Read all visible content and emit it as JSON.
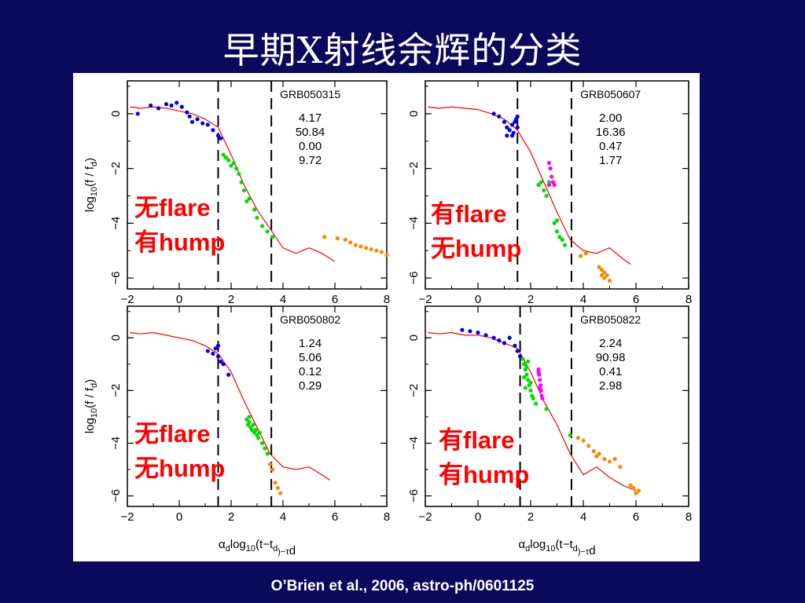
{
  "slide": {
    "title": "早期X射线余辉的分类",
    "citation": "O’Brien et al., 2006, astro-ph/0601125"
  },
  "axes": {
    "ylabel_parts": [
      "log",
      "10",
      "(f / f",
      "d",
      ")"
    ],
    "xlabel_parts": [
      "α",
      "d",
      "log",
      "10",
      "(t−t",
      "d",
      ")−τ",
      "d"
    ]
  },
  "colors": {
    "model": "#ff0000",
    "early": "#0000ee",
    "steep": "#00dd00",
    "flare": "#ff00ff",
    "late": "#ff8800",
    "annotation": "#ff0000"
  },
  "chart_data": [
    {
      "type": "scatter",
      "panel": "top-left",
      "grb": "GRB050315",
      "params": [
        "4.17",
        "50.84",
        "0.00",
        "9.72"
      ],
      "annotation": [
        "无flare",
        "有hump"
      ],
      "xlim": [
        -2,
        8
      ],
      "ylim": [
        -6.4,
        1.2
      ],
      "xticks": [
        -2,
        0,
        2,
        4,
        6,
        8
      ],
      "yticks": [
        0,
        -2,
        -4,
        -6
      ],
      "vlines": [
        1.5,
        3.55
      ],
      "model_line": [
        [
          -1.9,
          0.25
        ],
        [
          -1.5,
          0.2
        ],
        [
          -1.0,
          0.25
        ],
        [
          -0.5,
          0.2
        ],
        [
          0.0,
          0.1
        ],
        [
          0.5,
          0.0
        ],
        [
          1.0,
          -0.2
        ],
        [
          1.5,
          -0.5
        ],
        [
          2.0,
          -1.5
        ],
        [
          2.5,
          -2.6
        ],
        [
          3.0,
          -3.5
        ],
        [
          3.5,
          -4.2
        ],
        [
          4.0,
          -4.9
        ],
        [
          4.5,
          -5.1
        ],
        [
          5.0,
          -4.9
        ],
        [
          5.5,
          -5.1
        ],
        [
          6.0,
          -5.4
        ]
      ],
      "series": [
        {
          "name": "early",
          "points": [
            [
              -1.6,
              0.0
            ],
            [
              -1.1,
              0.3
            ],
            [
              -0.8,
              0.2
            ],
            [
              -0.5,
              0.35
            ],
            [
              -0.3,
              0.3
            ],
            [
              -0.1,
              0.4
            ],
            [
              0.1,
              0.25
            ],
            [
              0.3,
              0.05
            ],
            [
              0.4,
              -0.1
            ],
            [
              0.5,
              -0.3
            ],
            [
              0.7,
              -0.2
            ],
            [
              0.9,
              -0.35
            ],
            [
              1.1,
              -0.4
            ],
            [
              1.3,
              -0.6
            ],
            [
              1.5,
              -0.8
            ],
            [
              1.6,
              -0.9
            ]
          ]
        },
        {
          "name": "steep",
          "points": [
            [
              1.7,
              -1.5
            ],
            [
              1.8,
              -1.6
            ],
            [
              1.9,
              -1.7
            ],
            [
              2.0,
              -1.9
            ],
            [
              2.1,
              -1.8
            ],
            [
              2.2,
              -2.0
            ],
            [
              2.3,
              -2.2
            ],
            [
              2.4,
              -2.5
            ],
            [
              2.5,
              -2.8
            ],
            [
              2.6,
              -3.2
            ],
            [
              2.7,
              -3.1
            ],
            [
              2.9,
              -3.5
            ],
            [
              3.0,
              -3.8
            ],
            [
              3.2,
              -4.1
            ],
            [
              3.4,
              -4.3
            ],
            [
              3.6,
              -4.5
            ]
          ]
        },
        {
          "name": "late",
          "points": [
            [
              5.6,
              -4.5
            ],
            [
              6.1,
              -4.55
            ],
            [
              6.4,
              -4.6
            ],
            [
              6.6,
              -4.7
            ],
            [
              6.8,
              -4.8
            ],
            [
              7.0,
              -4.85
            ],
            [
              7.2,
              -4.9
            ],
            [
              7.4,
              -4.95
            ],
            [
              7.6,
              -5.0
            ],
            [
              7.8,
              -5.05
            ],
            [
              8.0,
              -5.15
            ]
          ]
        }
      ]
    },
    {
      "type": "scatter",
      "panel": "top-right",
      "grb": "GRB050607",
      "params": [
        "2.00",
        "16.36",
        "0.47",
        "1.77"
      ],
      "annotation": [
        "有flare",
        "无hump"
      ],
      "xlim": [
        -2,
        8
      ],
      "ylim": [
        -6.4,
        1.2
      ],
      "xticks": [
        -2,
        0,
        2,
        4,
        6,
        8
      ],
      "yticks": [
        0,
        -2,
        -4,
        -6
      ],
      "vlines": [
        1.5,
        3.55
      ],
      "model_line": [
        [
          -1.9,
          0.25
        ],
        [
          -1.5,
          0.2
        ],
        [
          -1.0,
          0.25
        ],
        [
          -0.5,
          0.2
        ],
        [
          0.0,
          0.15
        ],
        [
          0.5,
          0.0
        ],
        [
          1.0,
          -0.2
        ],
        [
          1.5,
          -0.6
        ],
        [
          2.0,
          -1.4
        ],
        [
          2.5,
          -2.5
        ],
        [
          3.0,
          -3.6
        ],
        [
          3.5,
          -4.6
        ],
        [
          4.0,
          -5.0
        ],
        [
          4.5,
          -5.1
        ],
        [
          5.0,
          -4.9
        ],
        [
          5.5,
          -5.3
        ],
        [
          5.8,
          -5.5
        ]
      ],
      "series": [
        {
          "name": "early",
          "points": [
            [
              0.6,
              0.0
            ],
            [
              0.8,
              -0.1
            ],
            [
              1.0,
              -0.3
            ],
            [
              1.1,
              -0.5
            ],
            [
              1.2,
              -0.6
            ],
            [
              1.3,
              -0.4
            ],
            [
              1.35,
              -0.7
            ],
            [
              1.4,
              -0.3
            ],
            [
              1.5,
              -0.5
            ],
            [
              1.45,
              -0.2
            ],
            [
              1.3,
              -0.8
            ],
            [
              1.1,
              -0.8
            ],
            [
              1.5,
              -0.1
            ]
          ]
        },
        {
          "name": "steep",
          "points": [
            [
              2.3,
              -2.6
            ],
            [
              2.4,
              -2.5
            ],
            [
              2.5,
              -2.8
            ],
            [
              2.6,
              -3.0
            ],
            [
              2.9,
              -4.0
            ],
            [
              3.0,
              -4.3
            ],
            [
              3.1,
              -4.5
            ],
            [
              3.2,
              -4.6
            ],
            [
              3.3,
              -4.8
            ],
            [
              2.7,
              -2.5
            ],
            [
              3.0,
              -3.9
            ]
          ]
        },
        {
          "name": "flare",
          "points": [
            [
              2.7,
              -1.8
            ],
            [
              2.75,
              -2.0
            ],
            [
              2.8,
              -2.3
            ],
            [
              2.85,
              -2.5
            ],
            [
              2.7,
              -2.6
            ],
            [
              2.9,
              -2.6
            ]
          ]
        },
        {
          "name": "late",
          "points": [
            [
              3.9,
              -5.2
            ],
            [
              4.1,
              -5.1
            ],
            [
              4.6,
              -5.6
            ],
            [
              4.7,
              -5.7
            ],
            [
              4.8,
              -5.8
            ],
            [
              4.9,
              -5.9
            ],
            [
              5.0,
              -6.1
            ],
            [
              4.8,
              -6.0
            ],
            [
              4.7,
              -5.9
            ]
          ]
        }
      ]
    },
    {
      "type": "scatter",
      "panel": "bottom-left",
      "grb": "GRB050802",
      "params": [
        "1.24",
        "5.06",
        "0.12",
        "0.29"
      ],
      "annotation": [
        "无flare",
        "无hump"
      ],
      "xlim": [
        -2,
        8
      ],
      "ylim": [
        -6.4,
        1.2
      ],
      "xticks": [
        -2,
        0,
        2,
        4,
        6,
        8
      ],
      "yticks": [
        0,
        -2,
        -4,
        -6
      ],
      "vlines": [
        1.5,
        3.55
      ],
      "model_line": [
        [
          -1.9,
          0.2
        ],
        [
          -1.5,
          0.15
        ],
        [
          -1.0,
          0.2
        ],
        [
          -0.5,
          0.1
        ],
        [
          0.0,
          0.0
        ],
        [
          0.5,
          -0.1
        ],
        [
          1.0,
          -0.3
        ],
        [
          1.5,
          -0.6
        ],
        [
          2.0,
          -1.3
        ],
        [
          2.5,
          -2.4
        ],
        [
          3.0,
          -3.4
        ],
        [
          3.5,
          -4.4
        ],
        [
          4.0,
          -4.9
        ],
        [
          4.5,
          -5.0
        ],
        [
          5.0,
          -4.9
        ],
        [
          5.5,
          -5.2
        ],
        [
          5.8,
          -5.4
        ]
      ],
      "series": [
        {
          "name": "early",
          "points": [
            [
              1.1,
              -0.5
            ],
            [
              1.3,
              -0.6
            ],
            [
              1.4,
              -0.4
            ],
            [
              1.5,
              -0.7
            ],
            [
              1.6,
              -0.9
            ],
            [
              1.7,
              -1.0
            ],
            [
              1.9,
              -1.4
            ],
            [
              1.5,
              -0.3
            ]
          ]
        },
        {
          "name": "steep",
          "points": [
            [
              2.6,
              -3.1
            ],
            [
              2.65,
              -3.3
            ],
            [
              2.7,
              -3.2
            ],
            [
              2.75,
              -3.4
            ],
            [
              2.8,
              -3.5
            ],
            [
              2.85,
              -3.3
            ],
            [
              2.9,
              -3.6
            ],
            [
              2.95,
              -3.5
            ],
            [
              3.0,
              -3.7
            ],
            [
              3.05,
              -3.8
            ],
            [
              3.1,
              -3.6
            ],
            [
              3.2,
              -4.0
            ],
            [
              3.3,
              -4.2
            ],
            [
              3.4,
              -4.4
            ],
            [
              2.7,
              -3.0
            ]
          ]
        },
        {
          "name": "late",
          "points": [
            [
              3.6,
              -5.0
            ],
            [
              3.7,
              -5.5
            ],
            [
              3.8,
              -5.7
            ],
            [
              3.9,
              -5.9
            ],
            [
              3.5,
              -4.8
            ]
          ]
        }
      ]
    },
    {
      "type": "scatter",
      "panel": "bottom-right",
      "grb": "GRB050822",
      "params": [
        "2.24",
        "90.98",
        "0.41",
        "2.98"
      ],
      "annotation": [
        "有flare",
        "有hump"
      ],
      "xlim": [
        -2,
        8
      ],
      "ylim": [
        -6.4,
        1.2
      ],
      "xticks": [
        -2,
        0,
        2,
        4,
        6,
        8
      ],
      "yticks": [
        0,
        -2,
        -4,
        -6
      ],
      "vlines": [
        1.6,
        3.55
      ],
      "model_line": [
        [
          -1.9,
          0.2
        ],
        [
          -1.5,
          0.15
        ],
        [
          -1.0,
          0.2
        ],
        [
          -0.5,
          0.1
        ],
        [
          0.0,
          0.1
        ],
        [
          0.5,
          0.0
        ],
        [
          1.0,
          -0.2
        ],
        [
          1.5,
          -0.4
        ],
        [
          2.0,
          -1.3
        ],
        [
          2.5,
          -2.4
        ],
        [
          3.0,
          -3.3
        ],
        [
          3.5,
          -4.4
        ],
        [
          4.0,
          -5.2
        ],
        [
          4.5,
          -4.9
        ],
        [
          5.0,
          -5.3
        ],
        [
          5.5,
          -5.6
        ],
        [
          6.0,
          -5.8
        ]
      ],
      "series": [
        {
          "name": "early",
          "points": [
            [
              -0.6,
              0.3
            ],
            [
              -0.3,
              0.25
            ],
            [
              0.0,
              0.2
            ],
            [
              0.3,
              0.1
            ],
            [
              0.6,
              0.0
            ],
            [
              0.8,
              -0.1
            ],
            [
              1.0,
              -0.2
            ],
            [
              1.2,
              0.0
            ],
            [
              1.4,
              -0.3
            ],
            [
              1.5,
              -0.5
            ],
            [
              1.6,
              -0.7
            ]
          ]
        },
        {
          "name": "steep",
          "points": [
            [
              1.7,
              -0.8
            ],
            [
              1.75,
              -1.0
            ],
            [
              1.8,
              -1.2
            ],
            [
              1.85,
              -1.4
            ],
            [
              1.9,
              -1.6
            ],
            [
              1.95,
              -1.8
            ],
            [
              2.0,
              -2.0
            ],
            [
              2.05,
              -2.2
            ],
            [
              1.75,
              -1.5
            ],
            [
              1.85,
              -1.1
            ],
            [
              1.9,
              -0.9
            ],
            [
              2.0,
              -1.7
            ],
            [
              2.1,
              -2.3
            ],
            [
              2.2,
              -2.5
            ],
            [
              2.6,
              -2.7
            ],
            [
              1.8,
              -1.9
            ],
            [
              3.5,
              -3.7
            ]
          ]
        },
        {
          "name": "flare",
          "points": [
            [
              2.3,
              -1.2
            ],
            [
              2.32,
              -1.4
            ],
            [
              2.35,
              -1.6
            ],
            [
              2.38,
              -1.8
            ],
            [
              2.4,
              -2.0
            ],
            [
              2.42,
              -2.2
            ],
            [
              2.45,
              -2.3
            ],
            [
              2.3,
              -1.3
            ],
            [
              2.35,
              -1.9
            ]
          ]
        },
        {
          "name": "late",
          "points": [
            [
              3.8,
              -3.8
            ],
            [
              4.0,
              -3.9
            ],
            [
              4.2,
              -4.1
            ],
            [
              4.4,
              -4.3
            ],
            [
              4.5,
              -4.5
            ],
            [
              4.6,
              -4.4
            ],
            [
              4.8,
              -4.6
            ],
            [
              5.0,
              -4.7
            ],
            [
              5.2,
              -4.6
            ],
            [
              5.4,
              -4.9
            ],
            [
              5.8,
              -5.6
            ],
            [
              5.9,
              -5.7
            ],
            [
              6.0,
              -5.9
            ],
            [
              6.1,
              -5.8
            ]
          ]
        }
      ]
    }
  ]
}
